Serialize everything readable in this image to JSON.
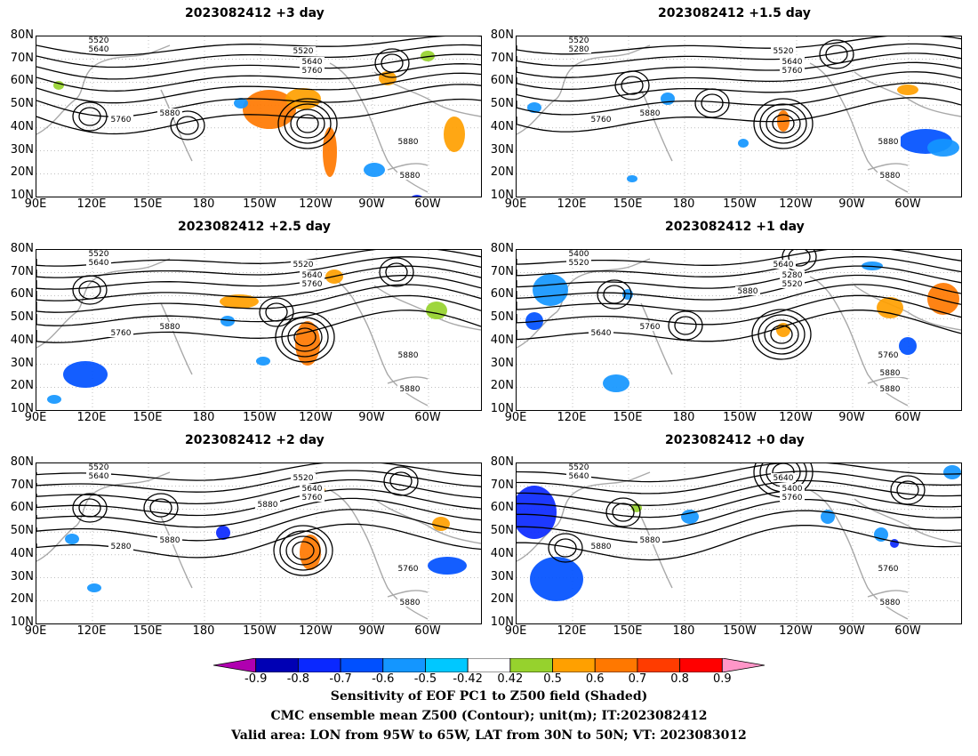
{
  "panels": [
    {
      "title": "2023082412 +3 day",
      "contours": [
        "5520",
        "5640",
        "5520",
        "5640",
        "5760",
        "5760",
        "5880",
        "5880",
        "5880"
      ]
    },
    {
      "title": "2023082412 +1.5 day",
      "contours": [
        "5520",
        "5280",
        "5520",
        "5640",
        "5760",
        "5760",
        "5880",
        "5880",
        "5880"
      ]
    },
    {
      "title": "2023082412 +2.5 day",
      "contours": [
        "5520",
        "5640",
        "5520",
        "5640",
        "5760",
        "5760",
        "5880",
        "5880",
        "5880"
      ]
    },
    {
      "title": "2023082412 +1 day",
      "contours": [
        "5400",
        "5520",
        "5640",
        "5280",
        "5520",
        "5640",
        "5760",
        "5760",
        "5880",
        "5880",
        "5880"
      ]
    },
    {
      "title": "2023082412 +2 day",
      "contours": [
        "5520",
        "5640",
        "5520",
        "5640",
        "5760",
        "5280",
        "5880",
        "5760",
        "5880",
        "5880"
      ]
    },
    {
      "title": "2023082412 +0 day",
      "contours": [
        "5520",
        "5640",
        "5640",
        "5400",
        "5760",
        "5880",
        "5880",
        "5760",
        "5880"
      ]
    }
  ],
  "lat_ticks": [
    "80N",
    "70N",
    "60N",
    "50N",
    "40N",
    "30N",
    "20N",
    "10N"
  ],
  "lon_ticks": [
    "90E",
    "120E",
    "150E",
    "180",
    "150W",
    "120W",
    "90W",
    "60W"
  ],
  "colorbar": {
    "labels": [
      "-0.9",
      "-0.8",
      "-0.7",
      "-0.6",
      "-0.5",
      "-0.42",
      "0.42",
      "0.5",
      "0.6",
      "0.7",
      "0.8",
      "0.9"
    ],
    "colors": [
      "#b000b0",
      "#0000b4",
      "#0a28ff",
      "#0050ff",
      "#1496ff",
      "#00c8ff",
      "#ffffff",
      "#96d22d",
      "#ffa000",
      "#ff7800",
      "#ff3c00",
      "#ff0000",
      "#ff96c8"
    ]
  },
  "caption": {
    "line1": "Sensitivity of EOF PC1 to Z500 field (Shaded)",
    "line2": "CMC ensemble mean Z500 (Contour); unit(m); IT:2023082412",
    "line3": "Valid area: LON from 95W to 65W, LAT from 30N to 50N; VT: 2023083012"
  }
}
